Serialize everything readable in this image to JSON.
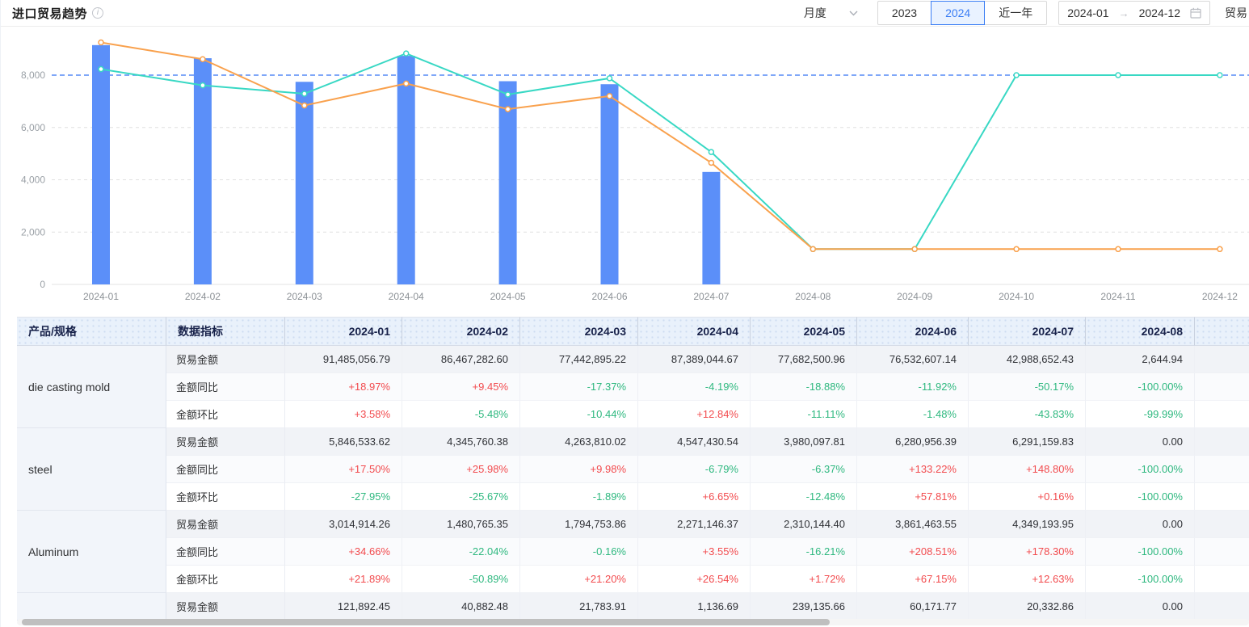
{
  "header": {
    "title": "进口贸易趋势",
    "granularity": {
      "value": "月度"
    },
    "year_buttons": [
      {
        "label": "2023",
        "active": false
      },
      {
        "label": "2024",
        "active": true
      },
      {
        "label": "近一年",
        "active": false
      }
    ],
    "date_range": {
      "start": "2024-01",
      "end": "2024-12"
    },
    "right_partial_text": "贸易"
  },
  "chart_data": {
    "type": "bar+line",
    "categories": [
      "2024-01",
      "2024-02",
      "2024-03",
      "2024-04",
      "2024-05",
      "2024-06",
      "2024-07",
      "2024-08",
      "2024-09",
      "2024-10",
      "2024-11",
      "2024-12"
    ],
    "y_ticks": [
      {
        "value": 0,
        "label": "0"
      },
      {
        "value": 2000,
        "label": "2,000"
      },
      {
        "value": 4000,
        "label": "4,000"
      },
      {
        "value": 6000,
        "label": "6,000"
      },
      {
        "value": 8000,
        "label": "8,000"
      }
    ],
    "ylim": [
      0,
      9500
    ],
    "grid": "dashed-horizontal",
    "legend": "none-visible",
    "reference_line": {
      "value": 8000,
      "color": "#6D9BF7",
      "style": "dashed"
    },
    "series": [
      {
        "name": "trade-amount-bar",
        "type": "bar",
        "color": "#5B8FF9",
        "values": [
          9148.51,
          8646.73,
          7744.29,
          8738.9,
          7768.25,
          7653.26,
          4298.87,
          0.26,
          0,
          0,
          0,
          0
        ]
      },
      {
        "name": "line-teal",
        "type": "line",
        "color": "#38D8C4",
        "values": [
          8230,
          7610,
          7290,
          8830,
          7260,
          7880,
          5060,
          1350,
          1350,
          8000,
          8000,
          8000
        ]
      },
      {
        "name": "line-orange",
        "type": "line",
        "color": "#F9A14D",
        "values": [
          9250,
          8610,
          6840,
          7680,
          6700,
          7200,
          4650,
          1350,
          1350,
          1350,
          1350,
          1350
        ]
      }
    ]
  },
  "table": {
    "columns": [
      "产品/规格",
      "数据指标",
      "2024-01",
      "2024-02",
      "2024-03",
      "2024-04",
      "2024-05",
      "2024-06",
      "2024-07",
      "2024-08",
      ""
    ],
    "colors": {
      "positive": "#F24B4E",
      "negative": "#2EB87F"
    },
    "products": [
      {
        "name": "die casting mold",
        "rows": [
          {
            "metric": "贸易金额",
            "values": [
              "91,485,056.79",
              "86,467,282.60",
              "77,442,895.22",
              "87,389,044.67",
              "77,682,500.96",
              "76,532,607.14",
              "42,988,652.43",
              "2,644.94"
            ]
          },
          {
            "metric": "金额同比",
            "values": [
              "+18.97%",
              "+9.45%",
              "-17.37%",
              "-4.19%",
              "-18.88%",
              "-11.92%",
              "-50.17%",
              "-100.00%"
            ]
          },
          {
            "metric": "金额环比",
            "values": [
              "+3.58%",
              "-5.48%",
              "-10.44%",
              "+12.84%",
              "-11.11%",
              "-1.48%",
              "-43.83%",
              "-99.99%"
            ]
          }
        ]
      },
      {
        "name": "steel",
        "rows": [
          {
            "metric": "贸易金额",
            "values": [
              "5,846,533.62",
              "4,345,760.38",
              "4,263,810.02",
              "4,547,430.54",
              "3,980,097.81",
              "6,280,956.39",
              "6,291,159.83",
              "0.00"
            ]
          },
          {
            "metric": "金额同比",
            "values": [
              "+17.50%",
              "+25.98%",
              "+9.98%",
              "-6.79%",
              "-6.37%",
              "+133.22%",
              "+148.80%",
              "-100.00%"
            ]
          },
          {
            "metric": "金额环比",
            "values": [
              "-27.95%",
              "-25.67%",
              "-1.89%",
              "+6.65%",
              "-12.48%",
              "+57.81%",
              "+0.16%",
              "-100.00%"
            ]
          }
        ]
      },
      {
        "name": "Aluminum",
        "rows": [
          {
            "metric": "贸易金额",
            "values": [
              "3,014,914.26",
              "1,480,765.35",
              "1,794,753.86",
              "2,271,146.37",
              "2,310,144.40",
              "3,861,463.55",
              "4,349,193.95",
              "0.00"
            ]
          },
          {
            "metric": "金额同比",
            "values": [
              "+34.66%",
              "-22.04%",
              "-0.16%",
              "+3.55%",
              "-16.21%",
              "+208.51%",
              "+178.30%",
              "-100.00%"
            ]
          },
          {
            "metric": "金额环比",
            "values": [
              "+21.89%",
              "-50.89%",
              "+21.20%",
              "+26.54%",
              "+1.72%",
              "+67.15%",
              "+12.63%",
              "-100.00%"
            ]
          }
        ]
      },
      {
        "name": "",
        "rows": [
          {
            "metric": "贸易金额",
            "values": [
              "121,892.45",
              "40,882.48",
              "21,783.91",
              "1,136.69",
              "239,135.66",
              "60,171.77",
              "20,332.86",
              "0.00"
            ]
          }
        ]
      }
    ]
  }
}
